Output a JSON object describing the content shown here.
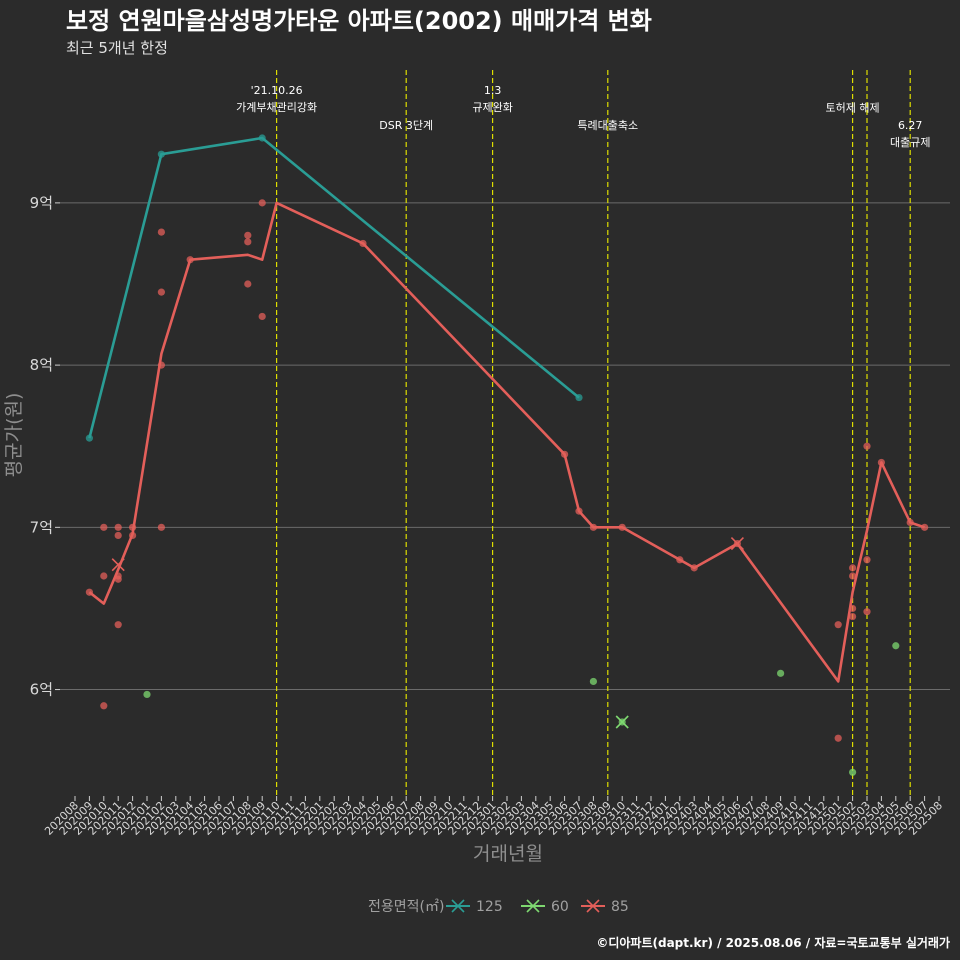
{
  "chart_data": {
    "type": "line",
    "title": "보정 연원마을삼성명가타운 아파트(2002) 매매가격 변화",
    "subtitle": "최근 5개년 한정",
    "xlabel": "거래년월",
    "ylabel": "평균가(원)",
    "caption": "©디아파트(dapt.kr) / 2025.08.06 / 자료=국토교통부 실거래가",
    "legend_title": "전용면적(㎡)",
    "legend_position": "bottom",
    "grid": true,
    "ylim": [
      5.35,
      9.85
    ],
    "y_ticks": [
      {
        "value": 6,
        "label": "6억"
      },
      {
        "value": 7,
        "label": "7억"
      },
      {
        "value": 8,
        "label": "8억"
      },
      {
        "value": 9,
        "label": "9억"
      }
    ],
    "x_months": [
      "202008",
      "202009",
      "202010",
      "202011",
      "202012",
      "202101",
      "202102",
      "202103",
      "202104",
      "202105",
      "202106",
      "202107",
      "202108",
      "202109",
      "202110",
      "202111",
      "202112",
      "202201",
      "202202",
      "202203",
      "202204",
      "202205",
      "202206",
      "202207",
      "202208",
      "202209",
      "202210",
      "202211",
      "202212",
      "202301",
      "202302",
      "202303",
      "202304",
      "202305",
      "202306",
      "202307",
      "202308",
      "202309",
      "202310",
      "202311",
      "202312",
      "202401",
      "202402",
      "202403",
      "202404",
      "202405",
      "202406",
      "202407",
      "202408",
      "202409",
      "202410",
      "202411",
      "202412",
      "202501",
      "202502",
      "202503",
      "202504",
      "202505",
      "202506",
      "202507",
      "202508"
    ],
    "series": [
      {
        "name": "125",
        "color": "#2a9d95",
        "line": [
          {
            "x": "202009",
            "y": 7.55
          },
          {
            "x": "202102",
            "y": 9.3
          },
          {
            "x": "202109",
            "y": 9.4
          },
          {
            "x": "202307",
            "y": 7.8
          }
        ],
        "points": [
          {
            "x": "202009",
            "y": 7.55
          },
          {
            "x": "202102",
            "y": 9.3
          },
          {
            "x": "202109",
            "y": 9.4
          },
          {
            "x": "202307",
            "y": 7.8
          }
        ],
        "cross_points": []
      },
      {
        "name": "60",
        "color": "#7ed870",
        "line": [],
        "points": [
          {
            "x": "202101",
            "y": 5.97
          },
          {
            "x": "202308",
            "y": 6.05
          },
          {
            "x": "202310",
            "y": 5.8
          },
          {
            "x": "202409",
            "y": 6.1
          },
          {
            "x": "202502",
            "y": 5.49
          },
          {
            "x": "202505",
            "y": 6.27
          }
        ],
        "cross_points": [
          {
            "x": "202310",
            "y": 5.8
          }
        ]
      },
      {
        "name": "85",
        "color": "#e35f5a",
        "line": [
          {
            "x": "202009",
            "y": 6.6
          },
          {
            "x": "202010",
            "y": 6.53
          },
          {
            "x": "202011",
            "y": 6.74
          },
          {
            "x": "202012",
            "y": 6.96
          },
          {
            "x": "202102",
            "y": 8.07
          },
          {
            "x": "202104",
            "y": 8.65
          },
          {
            "x": "202108",
            "y": 8.68
          },
          {
            "x": "202109",
            "y": 8.65
          },
          {
            "x": "202110",
            "y": 9.0
          },
          {
            "x": "202204",
            "y": 8.75
          },
          {
            "x": "202306",
            "y": 7.45
          },
          {
            "x": "202307",
            "y": 7.1
          },
          {
            "x": "202308",
            "y": 7.0
          },
          {
            "x": "202310",
            "y": 7.0
          },
          {
            "x": "202402",
            "y": 6.8
          },
          {
            "x": "202403",
            "y": 6.75
          },
          {
            "x": "202406",
            "y": 6.9
          },
          {
            "x": "202501",
            "y": 6.05
          },
          {
            "x": "202502",
            "y": 6.6
          },
          {
            "x": "202503",
            "y": 6.98
          },
          {
            "x": "202504",
            "y": 7.4
          },
          {
            "x": "202506",
            "y": 7.03
          },
          {
            "x": "202507",
            "y": 7.0
          }
        ],
        "points": [
          {
            "x": "202009",
            "y": 6.6
          },
          {
            "x": "202010",
            "y": 7.0
          },
          {
            "x": "202010",
            "y": 6.7
          },
          {
            "x": "202010",
            "y": 5.9
          },
          {
            "x": "202011",
            "y": 7.0
          },
          {
            "x": "202011",
            "y": 6.95
          },
          {
            "x": "202011",
            "y": 6.7
          },
          {
            "x": "202011",
            "y": 6.68
          },
          {
            "x": "202011",
            "y": 6.4
          },
          {
            "x": "202012",
            "y": 7.0
          },
          {
            "x": "202012",
            "y": 6.95
          },
          {
            "x": "202102",
            "y": 8.82
          },
          {
            "x": "202102",
            "y": 8.45
          },
          {
            "x": "202102",
            "y": 8.0
          },
          {
            "x": "202102",
            "y": 7.0
          },
          {
            "x": "202104",
            "y": 8.65
          },
          {
            "x": "202108",
            "y": 8.8
          },
          {
            "x": "202108",
            "y": 8.76
          },
          {
            "x": "202108",
            "y": 8.5
          },
          {
            "x": "202109",
            "y": 9.0
          },
          {
            "x": "202109",
            "y": 8.3
          },
          {
            "x": "202204",
            "y": 8.75
          },
          {
            "x": "202306",
            "y": 7.45
          },
          {
            "x": "202307",
            "y": 7.1
          },
          {
            "x": "202308",
            "y": 7.0
          },
          {
            "x": "202310",
            "y": 7.0
          },
          {
            "x": "202402",
            "y": 6.8
          },
          {
            "x": "202403",
            "y": 6.75
          },
          {
            "x": "202406",
            "y": 6.9
          },
          {
            "x": "202501",
            "y": 6.4
          },
          {
            "x": "202501",
            "y": 5.7
          },
          {
            "x": "202502",
            "y": 6.75
          },
          {
            "x": "202502",
            "y": 6.7
          },
          {
            "x": "202502",
            "y": 6.5
          },
          {
            "x": "202502",
            "y": 6.45
          },
          {
            "x": "202503",
            "y": 7.5
          },
          {
            "x": "202503",
            "y": 6.8
          },
          {
            "x": "202503",
            "y": 6.48
          },
          {
            "x": "202504",
            "y": 7.4
          },
          {
            "x": "202506",
            "y": 7.03
          },
          {
            "x": "202507",
            "y": 7.0
          }
        ],
        "cross_points": [
          {
            "x": "202011",
            "y": 6.77
          },
          {
            "x": "202406",
            "y": 6.9
          }
        ]
      }
    ],
    "events": [
      {
        "x": "202110",
        "lines": [
          "'21.10.26",
          "가계부채관리강화"
        ],
        "row": 0
      },
      {
        "x": "202207",
        "lines": [
          "DSR 3단계"
        ],
        "row": 1
      },
      {
        "x": "202301",
        "lines": [
          "1.3",
          "규제완화"
        ],
        "row": 0
      },
      {
        "x": "202309",
        "lines": [
          "특례대출축소"
        ],
        "row": 1
      },
      {
        "x": "202502",
        "lines": [
          "토허제 해제"
        ],
        "row": 0.5
      },
      {
        "x": "202503",
        "lines": [],
        "row": 0
      },
      {
        "x": "202506",
        "lines": [
          "6.27",
          "대출규제"
        ],
        "row": 1
      }
    ]
  }
}
